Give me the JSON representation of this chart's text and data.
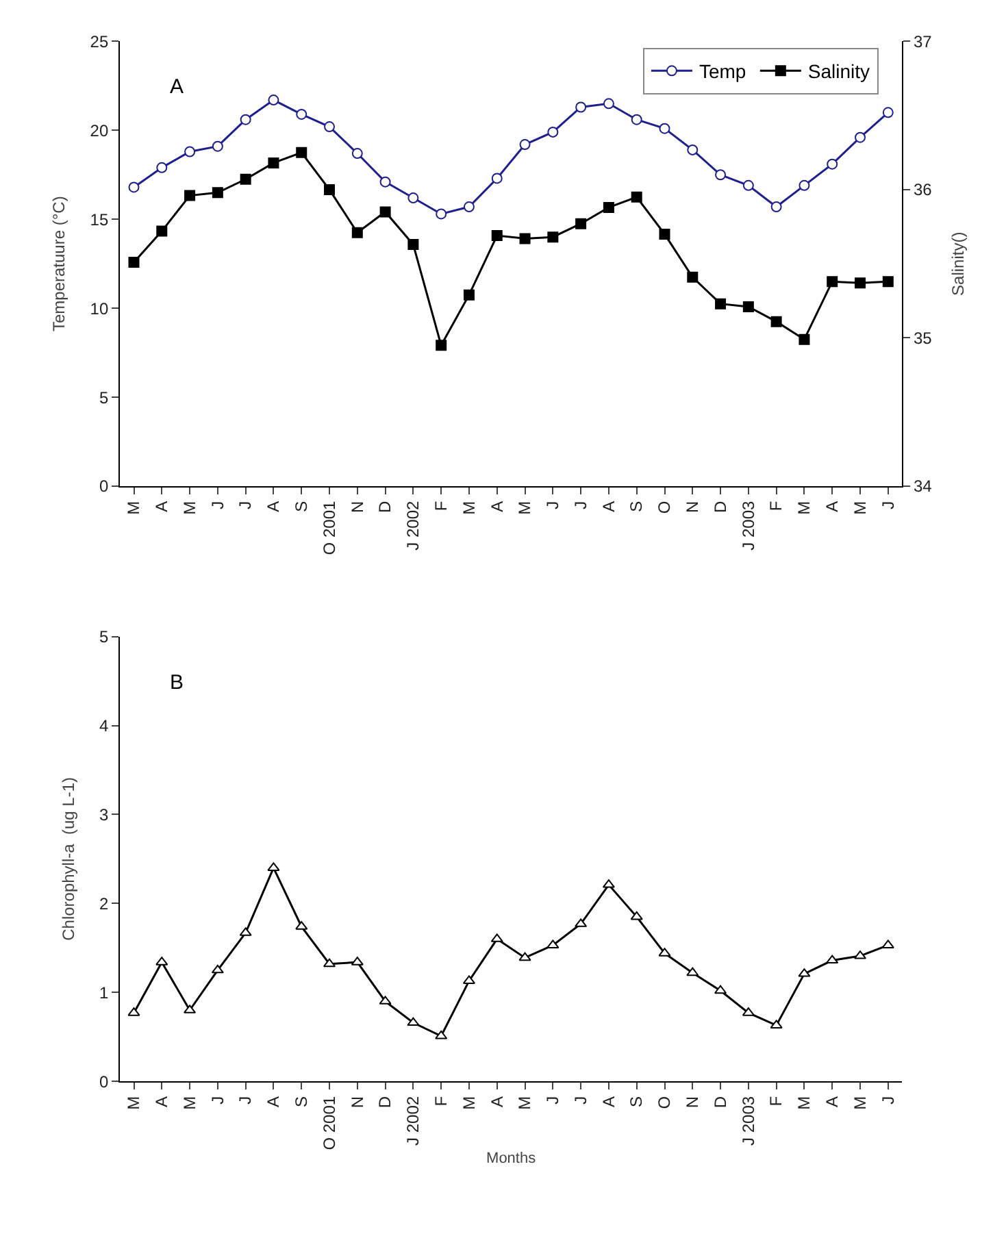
{
  "chart_data": [
    {
      "type": "line",
      "annotations": [
        "A"
      ],
      "ylabel": "Temperatuure (°C)",
      "y2label": "Salinity()",
      "categories": [
        "M",
        "A",
        "M",
        "J",
        "J",
        "A",
        "S",
        "O 2001",
        "N",
        "D",
        "J 2002",
        "F",
        "M",
        "A",
        "M",
        "J",
        "J",
        "A",
        "S",
        "O",
        "N",
        "D",
        "J 2003",
        "F",
        "M",
        "A",
        "M",
        "J"
      ],
      "series": [
        {
          "name": "Temp",
          "color": "#1f1f8f",
          "marker": "circle",
          "values": [
            16.8,
            17.9,
            18.8,
            19.1,
            20.6,
            21.7,
            20.9,
            20.2,
            18.7,
            17.1,
            16.2,
            15.3,
            15.7,
            17.3,
            19.2,
            19.9,
            21.3,
            21.5,
            20.6,
            20.1,
            18.9,
            17.5,
            16.9,
            15.7,
            16.9,
            18.1,
            19.6,
            21.0
          ]
        },
        {
          "name": "Salinity",
          "color": "#000000",
          "marker": "square",
          "axis": "y2",
          "values": [
            35.51,
            35.72,
            35.96,
            35.98,
            36.07,
            36.18,
            36.25,
            36.0,
            35.71,
            35.85,
            35.63,
            34.95,
            35.29,
            35.69,
            35.67,
            35.68,
            35.77,
            35.88,
            35.95,
            35.7,
            35.41,
            35.23,
            35.21,
            35.11,
            34.99,
            35.38,
            35.37,
            35.38
          ]
        }
      ],
      "ylim": [
        0,
        25
      ],
      "yticks": [
        0,
        5,
        10,
        15,
        20,
        25
      ],
      "y2lim": [
        34,
        37
      ],
      "y2ticks": [
        34,
        35,
        36,
        37
      ],
      "grid": false,
      "legend": "top right",
      "line_style": "solid"
    },
    {
      "type": "line",
      "annotations": [
        "B"
      ],
      "ylabel": "Chlorophyll-a  (ug L-1)",
      "xlabel": "Months",
      "categories": [
        "M",
        "A",
        "M",
        "J",
        "J",
        "A",
        "S",
        "O 2001",
        "N",
        "D",
        "J 2002",
        "F",
        "M",
        "A",
        "M",
        "J",
        "J",
        "A",
        "S",
        "O",
        "N",
        "D",
        "J 2003",
        "F",
        "M",
        "A",
        "M",
        "J"
      ],
      "series": [
        {
          "color": "#000000",
          "marker": "triangle",
          "values": [
            0.77,
            1.34,
            0.8,
            1.25,
            1.67,
            2.4,
            1.74,
            1.32,
            1.34,
            0.9,
            0.66,
            0.51,
            1.13,
            1.6,
            1.39,
            1.53,
            1.77,
            2.21,
            1.85,
            1.44,
            1.22,
            1.02,
            0.77,
            0.63,
            1.21,
            1.36,
            1.41,
            1.53
          ]
        }
      ],
      "ylim": [
        0,
        5
      ],
      "yticks": [
        0,
        1,
        2,
        3,
        4,
        5
      ],
      "grid": false,
      "legend": false,
      "line_style": "solid"
    }
  ]
}
